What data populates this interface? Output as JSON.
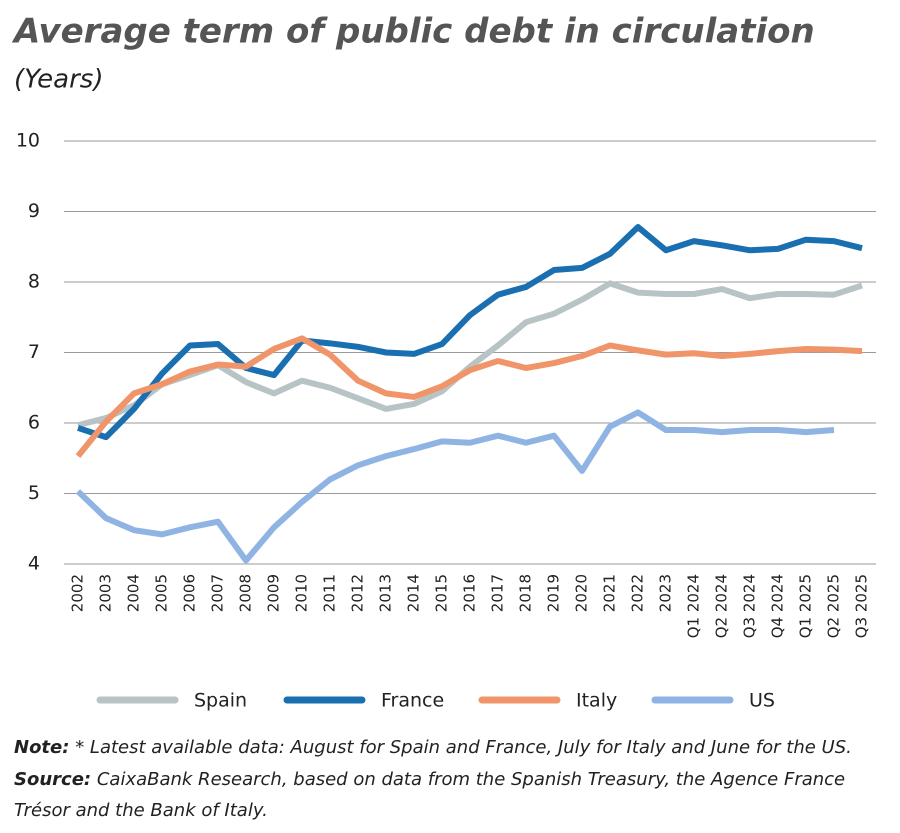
{
  "chart_data": {
    "type": "line",
    "title": "Average term of public debt in circulation",
    "subtitle": "(Years)",
    "categories": [
      "2002",
      "2003",
      "2004",
      "2005",
      "2006",
      "2007",
      "2008",
      "2009",
      "2010",
      "2011",
      "2012",
      "2013",
      "2014",
      "2015",
      "2016",
      "2017",
      "2018",
      "2019",
      "2020",
      "2021",
      "2022",
      "2023",
      "Q1 2024",
      "Q2 2024",
      "Q3 2024",
      "Q4 2024",
      "Q1 2025",
      "Q2 2025",
      "Q3 2025"
    ],
    "series": [
      {
        "name": "Spain",
        "color": "#b8c3c5",
        "values": [
          5.97,
          6.07,
          6.25,
          6.55,
          6.68,
          6.82,
          6.58,
          6.42,
          6.6,
          6.5,
          6.35,
          6.2,
          6.27,
          6.45,
          6.8,
          7.1,
          7.43,
          7.55,
          7.75,
          7.98,
          7.85,
          7.83,
          7.83,
          7.9,
          7.77,
          7.83,
          7.83,
          7.82,
          7.95
        ]
      },
      {
        "name": "France",
        "color": "#1a6fb0",
        "values": [
          5.93,
          5.8,
          6.2,
          6.7,
          7.1,
          7.12,
          6.78,
          6.68,
          7.17,
          7.13,
          7.08,
          7.0,
          6.98,
          7.12,
          7.53,
          7.82,
          7.93,
          8.17,
          8.2,
          8.4,
          8.78,
          8.45,
          8.58,
          8.52,
          8.45,
          8.47,
          8.6,
          8.58,
          8.48
        ]
      },
      {
        "name": "Italy",
        "color": "#f0956a",
        "values": [
          5.53,
          6.02,
          6.42,
          6.55,
          6.73,
          6.83,
          6.8,
          7.05,
          7.2,
          6.97,
          6.6,
          6.42,
          6.37,
          6.52,
          6.75,
          6.88,
          6.78,
          6.85,
          6.95,
          7.1,
          7.03,
          6.97,
          6.99,
          6.95,
          6.98,
          7.02,
          7.05,
          7.04,
          7.02
        ]
      },
      {
        "name": "US",
        "color": "#8fb4e3",
        "values": [
          5.03,
          4.65,
          4.48,
          4.42,
          4.52,
          4.6,
          4.05,
          4.52,
          4.88,
          5.2,
          5.4,
          5.53,
          5.63,
          5.74,
          5.72,
          5.82,
          5.72,
          5.82,
          5.32,
          5.95,
          6.15,
          5.9,
          5.9,
          5.87,
          5.9,
          5.9,
          5.87,
          5.9,
          null
        ]
      }
    ],
    "ylim": [
      4,
      10
    ],
    "yticks": [
      4,
      5,
      6,
      7,
      8,
      9,
      10
    ],
    "grid": true,
    "note_label": "Note:",
    "note": "* Latest available data: August for Spain and France, July for Italy and June for the US.",
    "source_label": "Source:",
    "source": "CaixaBank Research, based on data from the Spanish Treasury, the Agence France",
    "source_cont": "Trésor and the Bank of Italy."
  }
}
